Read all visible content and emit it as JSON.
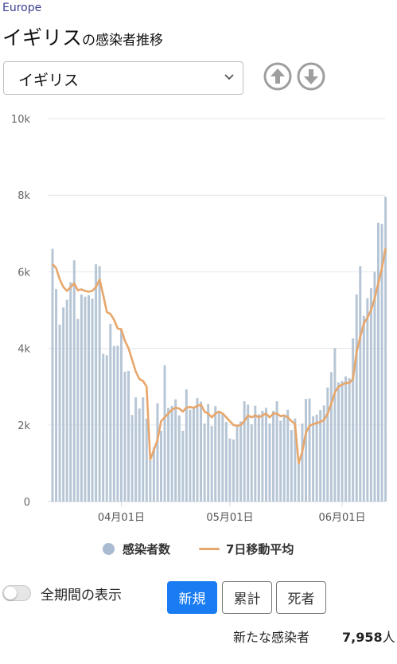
{
  "region": "Europe",
  "title": {
    "country": "イギリス",
    "suffix": "の感染者推移"
  },
  "select": {
    "value": "イギリス",
    "chevron_icon": "chevron-down-icon"
  },
  "nav": {
    "up_icon": "arrow-up-circle-icon",
    "down_icon": "arrow-down-circle-icon"
  },
  "colors": {
    "bar": "#b7c6d6",
    "line": "#e7a66b",
    "active": "#1a7cf2"
  },
  "chart_data": {
    "type": "bar",
    "y_ticks": [
      "0",
      "2k",
      "4k",
      "6k",
      "8k",
      "10k"
    ],
    "ylim": [
      0,
      10000
    ],
    "grid": true,
    "x_tick_labels": [
      "04月01日",
      "05月01日",
      "06月01日"
    ],
    "series": [
      {
        "name": "感染者数",
        "type": "bar",
        "values": [
          6600,
          5550,
          4620,
          5070,
          5270,
          5730,
          6300,
          4770,
          5410,
          5350,
          5390,
          5300,
          6200,
          6150,
          3860,
          3820,
          4640,
          4060,
          4070,
          4490,
          3390,
          3410,
          2260,
          2720,
          2430,
          2720,
          2170,
          1080,
          1420,
          2570,
          1850,
          3560,
          2450,
          2500,
          2670,
          2250,
          1850,
          2930,
          2400,
          2460,
          2700,
          2610,
          2040,
          2550,
          1970,
          2490,
          2370,
          2300,
          2080,
          1650,
          1620,
          1990,
          2090,
          2620,
          2530,
          2020,
          2500,
          2280,
          2370,
          2450,
          2040,
          2370,
          2620,
          2110,
          2270,
          2400,
          1870,
          2170,
          1000,
          2040,
          2680,
          2690,
          2230,
          2270,
          2390,
          2510,
          2980,
          3380,
          4010,
          3110,
          3150,
          3270,
          3220,
          4260,
          5410,
          6150,
          4850,
          5310,
          5570,
          6000,
          7280,
          7250,
          7960
        ]
      },
      {
        "name": "7日移動平均",
        "type": "line",
        "values": [
          6200,
          6100,
          5800,
          5600,
          5500,
          5600,
          5700,
          5520,
          5540,
          5500,
          5480,
          5500,
          5600,
          5800,
          5400,
          4950,
          4900,
          4750,
          4520,
          4500,
          4200,
          4000,
          3700,
          3400,
          3200,
          3150,
          3000,
          1100,
          1350,
          1600,
          2100,
          2200,
          2300,
          2400,
          2450,
          2430,
          2350,
          2450,
          2470,
          2450,
          2500,
          2530,
          2350,
          2300,
          2200,
          2300,
          2350,
          2300,
          2200,
          2100,
          2000,
          1980,
          2000,
          2100,
          2250,
          2200,
          2250,
          2200,
          2250,
          2300,
          2200,
          2300,
          2300,
          2230,
          2250,
          2200,
          2100,
          2030,
          1000,
          1300,
          1800,
          1980,
          2020,
          2050,
          2080,
          2130,
          2300,
          2550,
          2850,
          3000,
          3050,
          3100,
          3100,
          3200,
          3900,
          4300,
          4650,
          4800,
          5000,
          5300,
          5700,
          6100,
          6620
        ]
      }
    ]
  },
  "legend": {
    "cases": "感染者数",
    "average": "7日移動平均"
  },
  "toggle": {
    "label": "全期間の表示",
    "on": false
  },
  "segments": [
    {
      "label": "新規",
      "active": true
    },
    {
      "label": "累計",
      "active": false
    },
    {
      "label": "死者",
      "active": false
    }
  ],
  "summary": {
    "label": "新たな感染者",
    "value": "7,958",
    "unit": "人"
  }
}
